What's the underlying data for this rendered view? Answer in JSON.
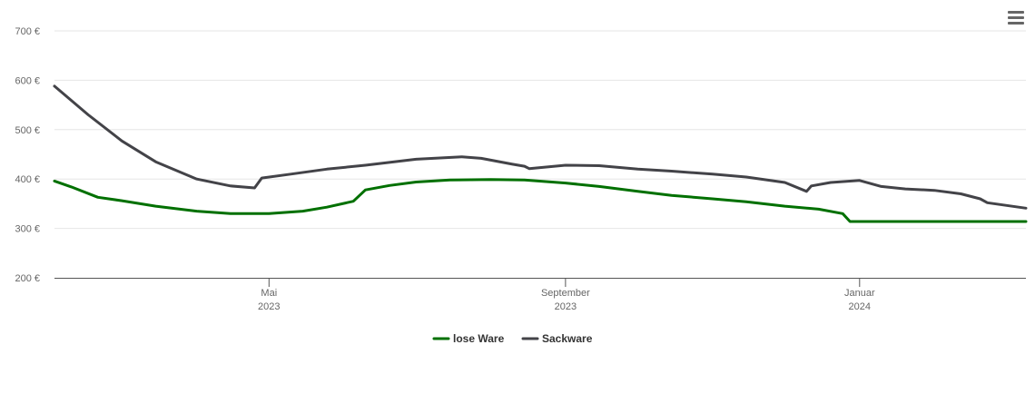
{
  "menu": {
    "icon": "hamburger-menu-icon"
  },
  "chart_data": {
    "type": "line",
    "title": "",
    "xlabel": "",
    "ylabel": "",
    "ylim": [
      200,
      700
    ],
    "y_ticks": [
      "200 €",
      "300 €",
      "400 €",
      "500 €",
      "600 €",
      "700 €"
    ],
    "y_tick_values": [
      200,
      300,
      400,
      500,
      600,
      700
    ],
    "x_range": [
      "2023-02-01",
      "2024-03-10"
    ],
    "x_ticks": [
      {
        "date": "2023-05-01",
        "month": "Mai",
        "year": "2023"
      },
      {
        "date": "2023-09-01",
        "month": "September",
        "year": "2023"
      },
      {
        "date": "2024-01-01",
        "month": "Januar",
        "year": "2024"
      }
    ],
    "grid": true,
    "legend_position": "bottom-center",
    "series": [
      {
        "name": "lose Ware",
        "color": "#007000",
        "points": [
          [
            "2023-02-01",
            396
          ],
          [
            "2023-02-08",
            384
          ],
          [
            "2023-02-19",
            363
          ],
          [
            "2023-03-01",
            356
          ],
          [
            "2023-03-15",
            345
          ],
          [
            "2023-04-01",
            335
          ],
          [
            "2023-04-15",
            330
          ],
          [
            "2023-05-01",
            330
          ],
          [
            "2023-05-15",
            335
          ],
          [
            "2023-05-25",
            343
          ],
          [
            "2023-06-05",
            355
          ],
          [
            "2023-06-10",
            378
          ],
          [
            "2023-06-20",
            387
          ],
          [
            "2023-07-01",
            394
          ],
          [
            "2023-07-15",
            398
          ],
          [
            "2023-08-01",
            399
          ],
          [
            "2023-08-15",
            398
          ],
          [
            "2023-09-01",
            392
          ],
          [
            "2023-09-15",
            385
          ],
          [
            "2023-10-01",
            375
          ],
          [
            "2023-10-15",
            367
          ],
          [
            "2023-11-01",
            360
          ],
          [
            "2023-11-15",
            354
          ],
          [
            "2023-12-01",
            345
          ],
          [
            "2023-12-15",
            339
          ],
          [
            "2023-12-25",
            330
          ],
          [
            "2023-12-28",
            314
          ],
          [
            "2024-01-10",
            314
          ],
          [
            "2024-02-01",
            314
          ],
          [
            "2024-03-10",
            314
          ]
        ]
      },
      {
        "name": "Sackware",
        "color": "#434348",
        "points": [
          [
            "2023-02-01",
            588
          ],
          [
            "2023-02-15",
            530
          ],
          [
            "2023-03-01",
            477
          ],
          [
            "2023-03-15",
            435
          ],
          [
            "2023-04-01",
            400
          ],
          [
            "2023-04-15",
            386
          ],
          [
            "2023-04-25",
            382
          ],
          [
            "2023-04-28",
            402
          ],
          [
            "2023-05-10",
            410
          ],
          [
            "2023-05-25",
            420
          ],
          [
            "2023-06-10",
            428
          ],
          [
            "2023-07-01",
            440
          ],
          [
            "2023-07-20",
            445
          ],
          [
            "2023-07-28",
            442
          ],
          [
            "2023-08-10",
            430
          ],
          [
            "2023-08-15",
            426
          ],
          [
            "2023-08-17",
            421
          ],
          [
            "2023-09-01",
            428
          ],
          [
            "2023-09-15",
            427
          ],
          [
            "2023-10-01",
            420
          ],
          [
            "2023-10-15",
            416
          ],
          [
            "2023-11-01",
            410
          ],
          [
            "2023-11-15",
            404
          ],
          [
            "2023-12-01",
            393
          ],
          [
            "2023-12-10",
            375
          ],
          [
            "2023-12-12",
            386
          ],
          [
            "2023-12-20",
            393
          ],
          [
            "2024-01-01",
            397
          ],
          [
            "2024-01-10",
            385
          ],
          [
            "2024-01-20",
            380
          ],
          [
            "2024-02-01",
            377
          ],
          [
            "2024-02-12",
            370
          ],
          [
            "2024-02-20",
            360
          ],
          [
            "2024-02-23",
            352
          ],
          [
            "2024-03-10",
            341
          ]
        ]
      }
    ]
  }
}
